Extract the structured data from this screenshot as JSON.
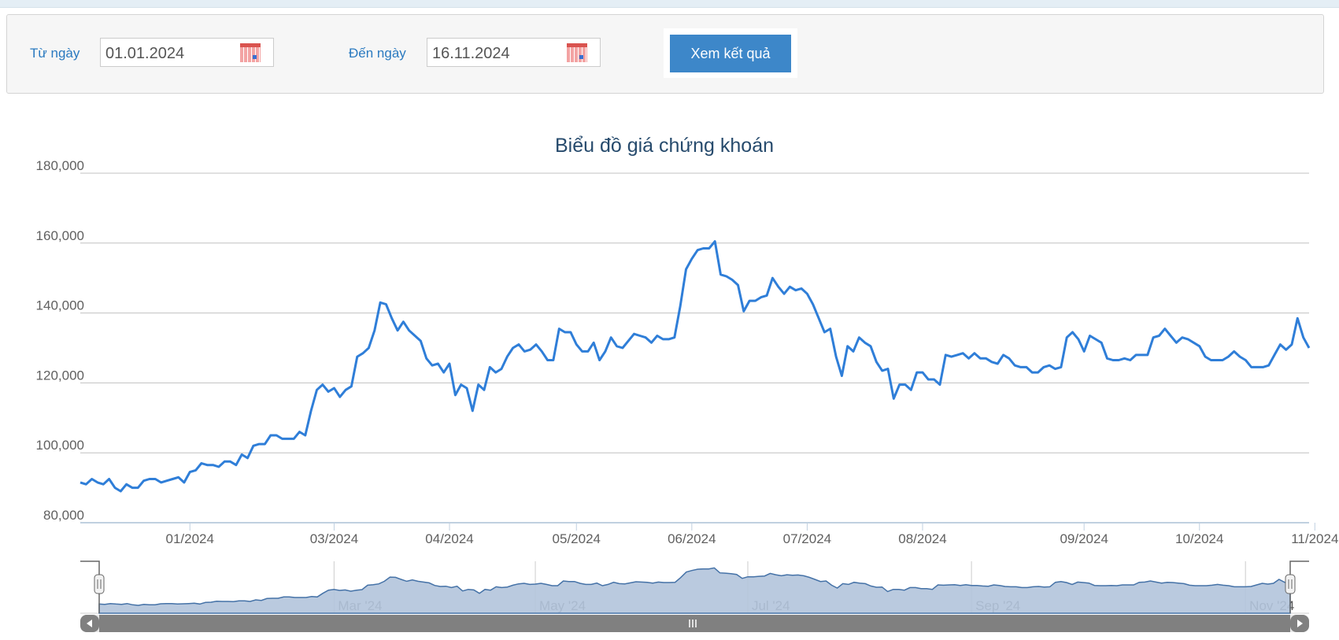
{
  "filter": {
    "from_label": "Từ ngày",
    "from_value": "01.01.2024",
    "to_label": "Đến ngày",
    "to_value": "16.11.2024",
    "submit_label": "Xem kết quả",
    "calendar_icon": "calendar-icon"
  },
  "chart_data": {
    "type": "line",
    "title": "Biểu đồ giá chứng khoán",
    "ylim": [
      80000,
      180000
    ],
    "yticks": [
      80000,
      100000,
      120000,
      140000,
      160000,
      180000
    ],
    "ytick_labels": [
      "80,000",
      "100,000",
      "120,000",
      "140,000",
      "160,000",
      "180,000"
    ],
    "xticks": [
      {
        "label": "01/2024",
        "index": 19
      },
      {
        "label": "03/2024",
        "index": 44
      },
      {
        "label": "04/2024",
        "index": 64
      },
      {
        "label": "05/2024",
        "index": 86
      },
      {
        "label": "06/2024",
        "index": 106
      },
      {
        "label": "07/2024",
        "index": 126
      },
      {
        "label": "08/2024",
        "index": 146
      },
      {
        "label": "09/2024",
        "index": 174
      },
      {
        "label": "10/2024",
        "index": 194
      },
      {
        "label": "11/2024",
        "index": 214
      }
    ],
    "grid": true,
    "line_color": "#2f7ed8",
    "navigator": {
      "labels": [
        "Mar '24",
        "May '24",
        "Jul '24",
        "Sep '24",
        "Nov '24"
      ],
      "label_indices": [
        42,
        78,
        116,
        156,
        205
      ],
      "fill": "#b3c4db",
      "stroke": "#4572a7"
    },
    "values": [
      91.5,
      91,
      92.5,
      91.5,
      91,
      92.5,
      90,
      89,
      91,
      90,
      90,
      92,
      92.5,
      92.5,
      91.5,
      92,
      92.5,
      93,
      91.5,
      94.5,
      95,
      97,
      96.5,
      96.5,
      96,
      97.5,
      97.5,
      96.5,
      99.5,
      98.5,
      102,
      102.5,
      102.5,
      105,
      105,
      104,
      104,
      104,
      106,
      105,
      112,
      118,
      119.5,
      117.5,
      118.5,
      116,
      118,
      119,
      127.5,
      128.5,
      130,
      135,
      143,
      142.5,
      138.5,
      135,
      137.5,
      135,
      133.5,
      132,
      127,
      125,
      125.5,
      123,
      125.5,
      116.5,
      119.5,
      118.5,
      112,
      119.5,
      118,
      124.5,
      123,
      124,
      127.5,
      130,
      131,
      129,
      129.5,
      131,
      129,
      126.5,
      126.5,
      135.5,
      134.5,
      134.5,
      131,
      129,
      129,
      131.5,
      126.5,
      129,
      133,
      130.5,
      130,
      132,
      134,
      133.5,
      133,
      131.5,
      133.5,
      132.5,
      132.5,
      133,
      142,
      152.5,
      155.5,
      158,
      158.5,
      158.5,
      160.5,
      151,
      150.5,
      149.5,
      148,
      140.5,
      143.5,
      143.5,
      144.5,
      145,
      150,
      147.5,
      145.5,
      147.5,
      146.5,
      147,
      145.5,
      142.5,
      138.5,
      134.5,
      135.5,
      127.5,
      122,
      130.5,
      129,
      133,
      131.5,
      130.5,
      126,
      123.5,
      124,
      115.5,
      119.5,
      119.5,
      118,
      123,
      123,
      121,
      121,
      119.5,
      128,
      127.5,
      128,
      128.5,
      127,
      128.5,
      127,
      127,
      126,
      125.5,
      128,
      127,
      125,
      124.5,
      124.5,
      123,
      123,
      124.5,
      125,
      124,
      124.5,
      133,
      134.5,
      132.5,
      129,
      133.5,
      132.5,
      131.5,
      127,
      126.5,
      126.5,
      127,
      126.5,
      128,
      128,
      128,
      133,
      133.5,
      135.5,
      133.5,
      131.5,
      133,
      132.5,
      131.5,
      130.5,
      127.5,
      126.5,
      126.5,
      126.5,
      127.5,
      129,
      127.5,
      126.5,
      124.5,
      124.5,
      124.5,
      125,
      128,
      131,
      129.5,
      131,
      138.5,
      133,
      130
    ],
    "value_unit_multiplier": 1000
  }
}
